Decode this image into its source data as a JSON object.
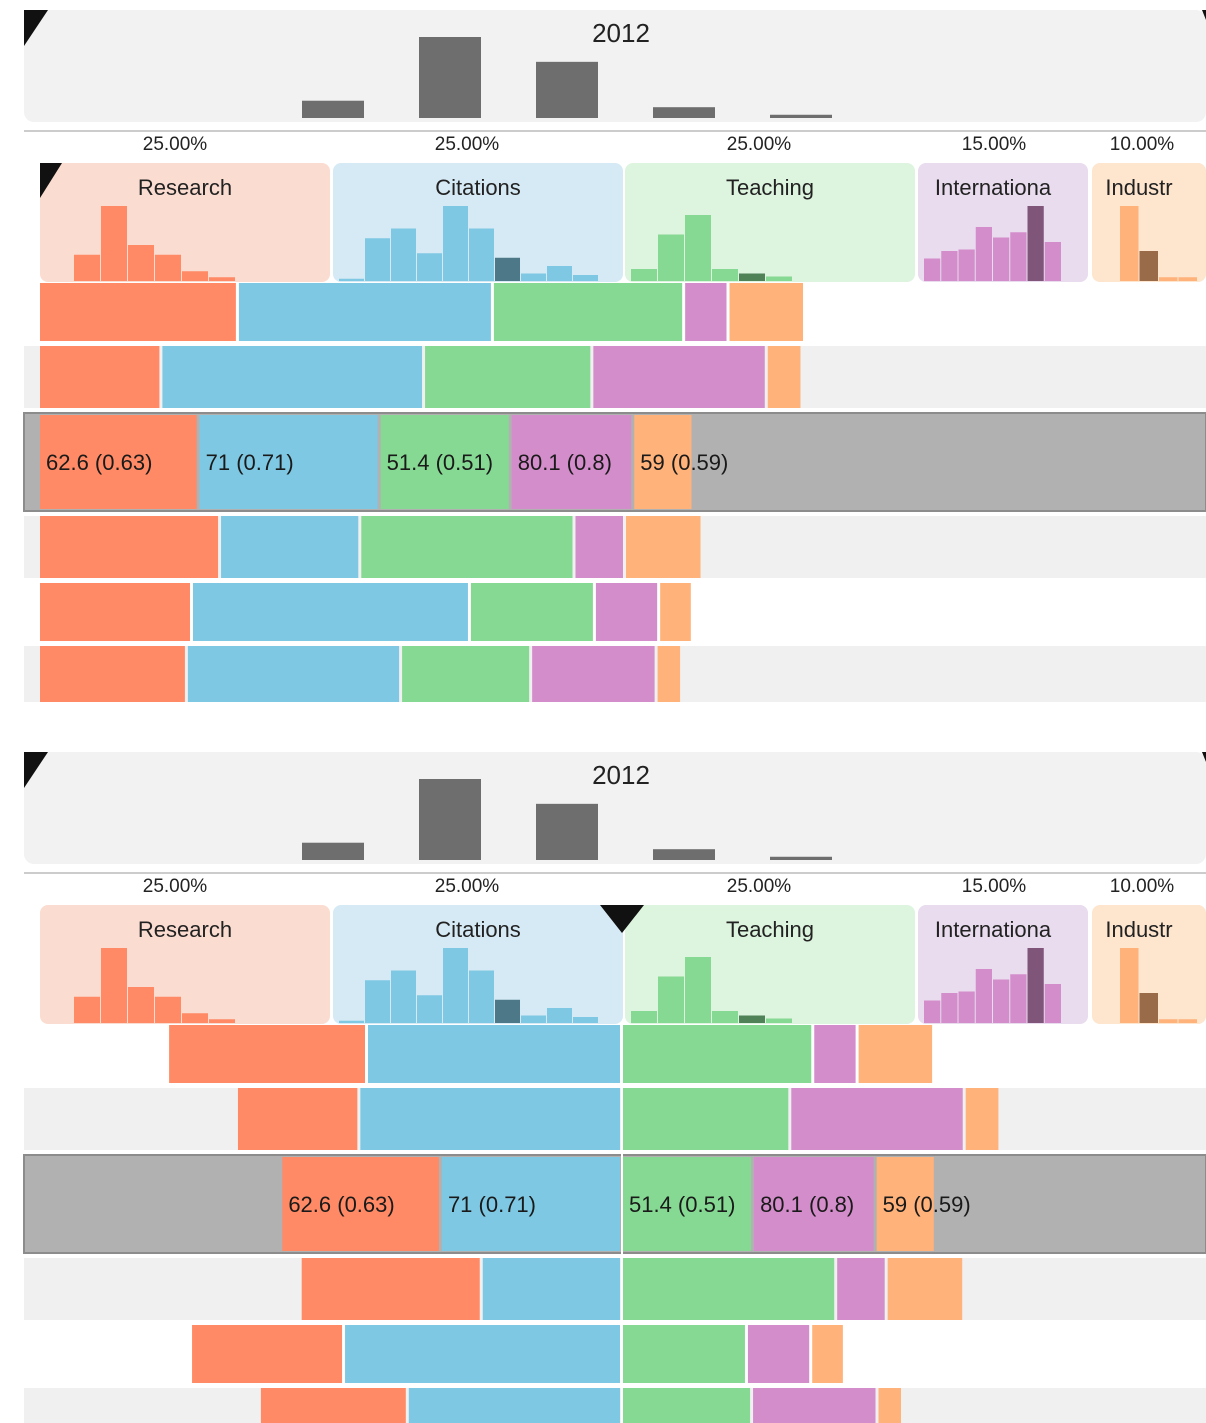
{
  "columns": [
    {
      "key": "research",
      "label": "Research",
      "weight": "25.00%",
      "color": "#FF8A65",
      "bg": "#FBDCD0"
    },
    {
      "key": "citations",
      "label": "Citations",
      "weight": "25.00%",
      "color": "#7EC8E3",
      "bg": "#D6EAF5"
    },
    {
      "key": "teaching",
      "label": "Teaching",
      "weight": "25.00%",
      "color": "#86D993",
      "bg": "#DDF4DF"
    },
    {
      "key": "international",
      "label": "Internationa",
      "weight": "15.00%",
      "color": "#D48DCB",
      "bg": "#E8DCEE"
    },
    {
      "key": "industry",
      "label": "Industr",
      "weight": "10.00%",
      "color": "#FFB27A",
      "bg": "#FDE5CE"
    }
  ],
  "panels": [
    {
      "year_label": "2012",
      "alignment": "stacked-left"
    },
    {
      "year_label": "2012",
      "alignment": "centered-on-teaching"
    }
  ],
  "highlighted_row_labels": [
    "62.6 (0.63)",
    "71 (0.71)",
    "51.4 (0.51)",
    "80.1 (0.8)",
    "59 (0.59)"
  ],
  "chart_data": {
    "type": "bar",
    "subtype": "stacked-bar-ranking",
    "series": [
      "Research",
      "Citations",
      "Teaching",
      "Internationa",
      "Industr"
    ],
    "weights": [
      0.25,
      0.25,
      0.25,
      0.15,
      0.1
    ],
    "rows": [
      {
        "values": [
          0.78,
          1.0,
          0.75,
          0.29,
          0.75
        ]
      },
      {
        "values": [
          0.48,
          1.03,
          0.66,
          1.14,
          0.35
        ]
      },
      {
        "values": [
          0.626,
          0.71,
          0.514,
          0.801,
          0.59
        ],
        "highlighted": true
      },
      {
        "values": [
          0.71,
          0.55,
          0.84,
          0.33,
          0.76
        ]
      },
      {
        "values": [
          0.6,
          1.09,
          0.49,
          0.42,
          0.33
        ]
      },
      {
        "values": [
          0.58,
          0.84,
          0.51,
          0.82,
          0.25
        ]
      }
    ],
    "year_histogram": [
      0,
      0.16,
      0.75,
      0.52,
      0.1,
      0.03
    ],
    "histograms": {
      "research": [
        0.35,
        1.0,
        0.48,
        0.35,
        0.13,
        0.05
      ],
      "citations": [
        0.03,
        0.57,
        0.7,
        0.37,
        1.0,
        0.7,
        0.31,
        0.1,
        0.2,
        0.08
      ],
      "teaching": [
        0.16,
        0.62,
        0.88,
        0.16,
        0.1,
        0.06
      ],
      "international": [
        0.3,
        0.4,
        0.42,
        0.72,
        0.58,
        0.65,
        1.0,
        0.52
      ],
      "industry": [
        1.0,
        0.4,
        0.05,
        0.05
      ]
    }
  }
}
